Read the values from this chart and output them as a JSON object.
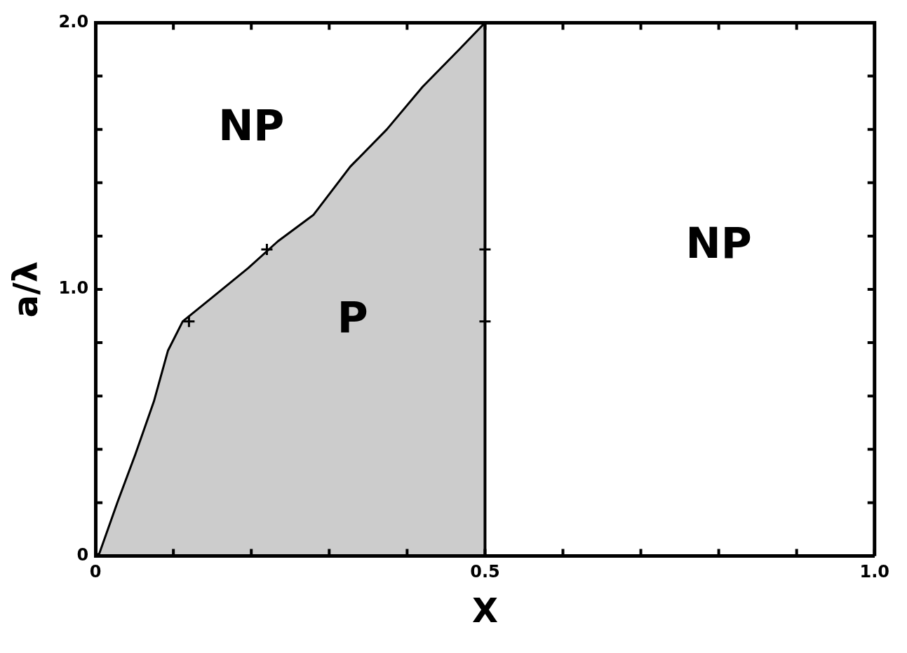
{
  "chart_data": {
    "type": "area",
    "xlabel": "X",
    "ylabel": "a/λ",
    "xlim": [
      0,
      1
    ],
    "ylim": [
      0,
      2
    ],
    "xticks": [
      0,
      {
        "value": 0.1,
        "label": null
      },
      {
        "value": 0.2,
        "label": null
      },
      {
        "value": 0.3,
        "label": null
      },
      {
        "value": 0.4,
        "label": null
      },
      0.5,
      {
        "value": 0.6,
        "label": null
      },
      {
        "value": 0.7,
        "label": null
      },
      {
        "value": 0.8,
        "label": null
      },
      {
        "value": 0.9,
        "label": null
      },
      {
        "value": 1,
        "label": "1.0"
      }
    ],
    "yticks": [
      0,
      {
        "value": 0.2,
        "label": null
      },
      {
        "value": 0.4,
        "label": null
      },
      {
        "value": 0.6,
        "label": null
      },
      {
        "value": 0.8,
        "label": null
      },
      {
        "value": 1,
        "label": "1.0"
      },
      {
        "value": 1.2,
        "label": null
      },
      {
        "value": 1.4,
        "label": null
      },
      {
        "value": 1.6,
        "label": null
      },
      {
        "value": 1.8,
        "label": null
      },
      {
        "value": 2,
        "label": "2.0"
      }
    ],
    "grid": false,
    "legend": false,
    "series": [
      {
        "color": "#000000",
        "x": [
          0,
          0.005,
          0.028,
          0.051,
          0.075,
          0.093,
          0.112,
          0.15,
          0.196,
          0.234,
          0.28,
          0.327,
          0.374,
          0.42,
          0.467,
          0.5
        ],
        "values": [
          0,
          0.01,
          0.2,
          0.38,
          0.58,
          0.77,
          0.88,
          0.97,
          1.08,
          1.18,
          1.28,
          1.46,
          1.6,
          1.76,
          1.9,
          2.0
        ]
      },
      {
        "type": "scatter",
        "color": "#000000",
        "marker": "cross",
        "x": [
          0.12,
          0.22,
          0.5,
          0.5
        ],
        "values": [
          0.88,
          1.15,
          1.15,
          0.88
        ]
      }
    ],
    "ref_lines": [
      {
        "axis": "x",
        "value": 0.5,
        "color": "#000000"
      }
    ],
    "annotations": [
      "NP",
      "P",
      "NP"
    ]
  }
}
